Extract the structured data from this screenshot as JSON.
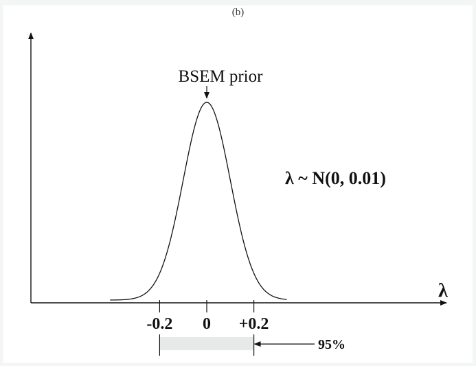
{
  "panel_label": "(b)",
  "chart_data": {
    "type": "line",
    "distribution": "normal",
    "mean": 0,
    "variance": 0.01,
    "peak_label": "BSEM prior",
    "formula": "λ ~ N(0, 0.01)",
    "xlabel": "λ",
    "ylabel": "",
    "xlim": [
      -0.41,
      0.34
    ],
    "ticks": [
      {
        "value": -0.2,
        "label": "-0.2"
      },
      {
        "value": 0,
        "label": "0"
      },
      {
        "value": 0.2,
        "label": "+0.2"
      }
    ],
    "interval": {
      "low": -0.2,
      "high": 0.2,
      "label": "95%"
    },
    "colors": {
      "line": "#111111",
      "interval_fill": "#e6e9e7"
    }
  }
}
